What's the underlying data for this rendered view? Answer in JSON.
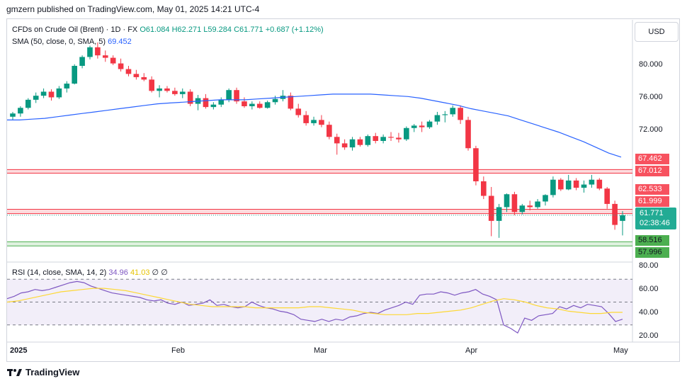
{
  "header": {
    "publisher": "gmzern published on TradingView.com, May 01, 2025 14:21 UTC-4"
  },
  "symbol": {
    "name": "CFDs on Crude Oil (Brent) · 1D · FX",
    "open": "O61.084",
    "high": "H62.271",
    "low": "L59.284",
    "close": "C61.771",
    "change": "+0.687 (+1.12%)"
  },
  "sma": {
    "label": "SMA (50, close, 0, SMA, 5)",
    "value": "69.452"
  },
  "currency": "USD",
  "price_axis": [
    "80.000",
    "76.000",
    "72.000"
  ],
  "price_tags": {
    "zone1_top": "67.462",
    "zone1_bottom": "67.012",
    "zone2_top": "62.533",
    "zone2_bottom": "61.999",
    "current": "61.771",
    "countdown": "02:38:46",
    "zone3_top": "58.516",
    "zone3_bottom": "57.996"
  },
  "rsi": {
    "label": "RSI (14, close, SMA, 14, 2)",
    "value": "34.96",
    "sma_value": "41.03",
    "extra1": "∅",
    "extra2": "∅",
    "axis": [
      "80.00",
      "60.00",
      "40.00",
      "20.00"
    ]
  },
  "time_axis": [
    "2025",
    "Feb",
    "Mar",
    "Apr",
    "May"
  ],
  "colors": {
    "up": "#089981",
    "down": "#f23645",
    "sma": "#2962ff",
    "rsi": "#7e57c2",
    "rsi_sma": "#fdd835"
  },
  "footer": {
    "brand": "TradingView"
  },
  "chart_data": {
    "type": "candlestick",
    "title": "CFDs on Crude Oil (Brent) · 1D · FX",
    "candles_ohlc": [
      [
        74.0,
        74.6,
        73.6,
        74.4
      ],
      [
        74.4,
        75.3,
        74.0,
        75.1
      ],
      [
        75.1,
        76.3,
        74.9,
        76.1
      ],
      [
        76.1,
        77.0,
        75.7,
        76.6
      ],
      [
        76.6,
        77.5,
        76.3,
        77.1
      ],
      [
        77.1,
        77.4,
        76.0,
        76.4
      ],
      [
        76.4,
        77.8,
        76.2,
        77.5
      ],
      [
        77.5,
        78.4,
        77.0,
        78.1
      ],
      [
        78.1,
        80.5,
        78.0,
        80.3
      ],
      [
        80.3,
        81.6,
        80.0,
        81.4
      ],
      [
        81.4,
        82.8,
        81.1,
        82.6
      ],
      [
        82.6,
        83.2,
        81.2,
        81.6
      ],
      [
        81.6,
        82.2,
        80.8,
        81.3
      ],
      [
        81.3,
        81.6,
        80.4,
        80.6
      ],
      [
        80.6,
        81.2,
        79.6,
        79.9
      ],
      [
        79.9,
        80.3,
        79.0,
        79.3
      ],
      [
        79.3,
        79.8,
        78.6,
        78.9
      ],
      [
        78.9,
        79.4,
        78.4,
        78.6
      ],
      [
        78.6,
        79.0,
        77.0,
        77.2
      ],
      [
        77.2,
        77.9,
        76.4,
        77.5
      ],
      [
        77.5,
        77.8,
        77.0,
        77.2
      ],
      [
        77.2,
        77.6,
        76.6,
        76.8
      ],
      [
        76.8,
        77.5,
        76.3,
        77.1
      ],
      [
        77.1,
        77.4,
        75.3,
        75.6
      ],
      [
        75.6,
        76.7,
        74.8,
        76.3
      ],
      [
        76.3,
        76.8,
        75.0,
        75.2
      ],
      [
        75.2,
        75.8,
        74.9,
        75.5
      ],
      [
        75.5,
        76.4,
        75.2,
        76.1
      ],
      [
        76.1,
        77.5,
        75.8,
        77.3
      ],
      [
        77.3,
        77.6,
        75.6,
        75.9
      ],
      [
        75.9,
        76.4,
        75.1,
        75.3
      ],
      [
        75.3,
        75.9,
        74.9,
        75.6
      ],
      [
        75.6,
        75.9,
        75.0,
        75.1
      ],
      [
        75.1,
        76.0,
        75.0,
        75.8
      ],
      [
        75.8,
        76.6,
        75.5,
        76.2
      ],
      [
        76.2,
        77.3,
        75.9,
        76.6
      ],
      [
        76.6,
        77.0,
        74.8,
        75.0
      ],
      [
        75.0,
        75.6,
        73.9,
        74.2
      ],
      [
        74.2,
        74.7,
        72.9,
        73.2
      ],
      [
        73.2,
        74.0,
        72.9,
        73.6
      ],
      [
        73.6,
        74.2,
        72.7,
        73.0
      ],
      [
        73.0,
        73.4,
        71.2,
        71.5
      ],
      [
        71.5,
        71.9,
        69.3,
        70.7
      ],
      [
        70.7,
        71.2,
        69.9,
        70.2
      ],
      [
        70.2,
        71.5,
        69.8,
        71.2
      ],
      [
        71.2,
        71.5,
        70.3,
        70.5
      ],
      [
        70.5,
        71.8,
        70.3,
        71.6
      ],
      [
        71.6,
        72.0,
        70.7,
        71.0
      ],
      [
        71.0,
        71.8,
        70.7,
        71.5
      ],
      [
        71.5,
        72.1,
        71.0,
        71.4
      ],
      [
        71.4,
        72.0,
        70.8,
        71.2
      ],
      [
        71.2,
        72.8,
        71.0,
        72.6
      ],
      [
        72.6,
        73.1,
        72.1,
        72.9
      ],
      [
        72.9,
        73.4,
        72.1,
        72.7
      ],
      [
        72.7,
        73.6,
        72.5,
        73.4
      ],
      [
        73.4,
        74.6,
        73.0,
        74.2
      ],
      [
        74.2,
        74.7,
        73.3,
        74.3
      ],
      [
        74.3,
        75.4,
        74.0,
        75.1
      ],
      [
        75.1,
        75.4,
        73.1,
        73.6
      ],
      [
        73.6,
        74.0,
        69.8,
        70.1
      ],
      [
        70.1,
        70.4,
        65.5,
        66.0
      ],
      [
        66.0,
        66.6,
        63.8,
        64.2
      ],
      [
        64.2,
        65.3,
        59.2,
        61.1
      ],
      [
        61.1,
        63.2,
        59.0,
        62.8
      ],
      [
        62.8,
        64.5,
        62.2,
        64.4
      ],
      [
        64.4,
        64.7,
        61.8,
        62.2
      ],
      [
        62.2,
        63.2,
        61.9,
        63.0
      ],
      [
        63.0,
        63.6,
        62.4,
        62.8
      ],
      [
        62.8,
        63.8,
        62.6,
        63.5
      ],
      [
        63.5,
        64.4,
        63.0,
        64.3
      ],
      [
        64.3,
        66.6,
        64.0,
        66.2
      ],
      [
        66.2,
        66.4,
        64.8,
        65.0
      ],
      [
        65.0,
        66.8,
        64.9,
        66.1
      ],
      [
        66.1,
        66.4,
        64.9,
        65.2
      ],
      [
        65.2,
        66.1,
        64.6,
        65.6
      ],
      [
        65.6,
        66.8,
        65.2,
        66.2
      ],
      [
        66.2,
        66.4,
        64.9,
        65.1
      ],
      [
        65.1,
        65.3,
        62.6,
        63.2
      ],
      [
        63.2,
        63.6,
        60.0,
        60.6
      ],
      [
        61.1,
        62.3,
        59.3,
        61.8
      ]
    ],
    "sma50": [
      73.6,
      73.6,
      73.7,
      73.8,
      74.0,
      74.2,
      74.4,
      74.6,
      74.8,
      75.0,
      75.2,
      75.4,
      75.6,
      75.7,
      75.8,
      75.9,
      76.0,
      76.1,
      76.1,
      76.1,
      76.2,
      76.3,
      76.4,
      76.5,
      76.6,
      76.7,
      76.8,
      76.8,
      76.8,
      76.8,
      76.7,
      76.6,
      76.5,
      76.3,
      76.0,
      75.7,
      75.4,
      75.0,
      74.7,
      74.4,
      74.1,
      73.6,
      73.1,
      72.6,
      72.1,
      71.5,
      70.9,
      70.2,
      69.5,
      69.0
    ],
    "rsi_values": [
      53,
      55,
      58,
      59,
      61,
      60,
      61,
      63,
      65,
      67,
      68,
      67,
      64,
      62,
      60,
      58,
      57,
      56,
      55,
      54,
      52,
      51,
      52,
      49,
      48,
      50,
      47,
      48,
      49,
      52,
      47,
      48,
      46,
      45,
      46,
      50,
      47,
      45,
      44,
      42,
      41,
      39,
      35,
      34,
      33,
      35,
      33,
      35,
      34,
      37,
      38,
      40,
      41,
      40,
      43,
      45,
      47,
      50,
      48,
      56,
      57,
      57,
      59,
      58,
      56,
      58,
      59,
      61,
      57,
      55,
      52,
      30,
      27,
      23,
      36,
      34,
      38,
      39,
      40,
      46,
      44,
      47,
      45,
      48,
      47,
      46,
      40,
      33,
      35
    ],
    "rsi_sma_values": [
      50,
      51,
      53,
      55,
      57,
      59,
      60,
      61,
      62,
      62,
      61,
      60,
      58,
      56,
      54,
      52,
      50,
      48,
      47,
      46,
      46,
      46,
      46,
      45,
      45,
      45,
      45,
      45,
      46,
      46,
      45,
      44,
      43,
      41,
      40,
      39,
      39,
      39,
      40,
      40,
      41,
      42,
      43,
      45,
      48,
      51,
      53,
      52,
      50,
      47,
      45,
      44,
      42,
      41,
      40,
      40,
      41,
      41
    ],
    "price_ylim": [
      56,
      86
    ],
    "rsi_ylim": [
      15,
      85
    ],
    "horizontal_zones": [
      [
        67.012,
        67.462
      ],
      [
        61.999,
        62.533
      ],
      [
        57.996,
        58.516
      ]
    ],
    "xlabels": [
      "2025",
      "Feb",
      "Mar",
      "Apr",
      "May"
    ]
  }
}
